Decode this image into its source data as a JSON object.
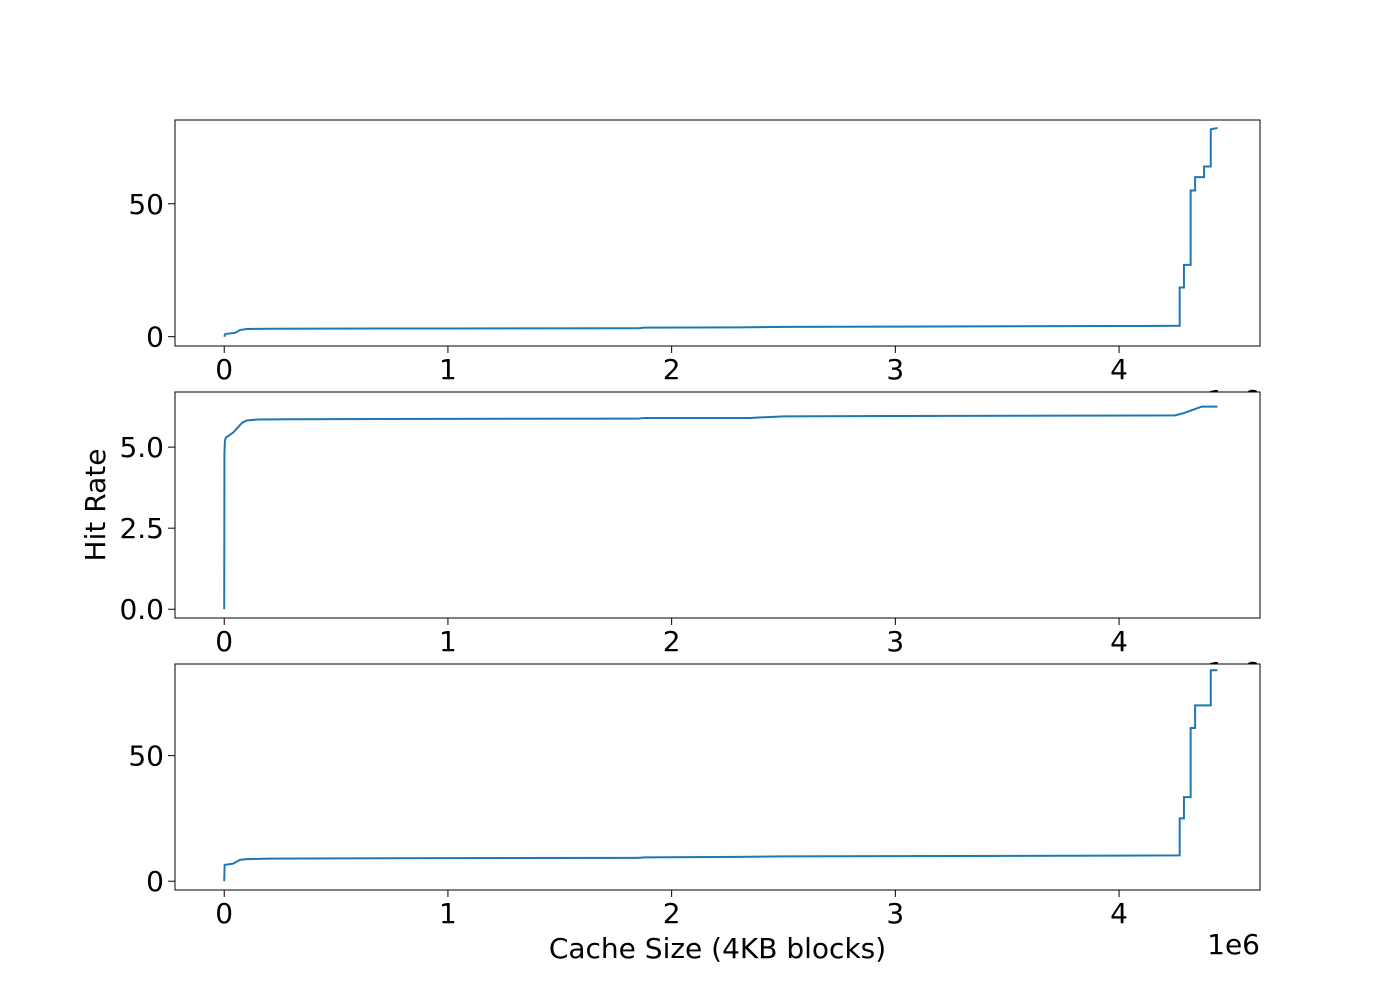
{
  "chart_data": [
    {
      "type": "line",
      "xlabel": "",
      "ylabel": "",
      "xlim": [
        -220000,
        4630000
      ],
      "ylim": [
        -3.5,
        81.5
      ],
      "x_ticks": [
        0,
        1000000,
        2000000,
        3000000,
        4000000
      ],
      "x_tick_labels": [
        "0",
        "1",
        "2",
        "3",
        "4"
      ],
      "x_offset_label": "1e6",
      "y_ticks": [
        0,
        50
      ],
      "y_tick_labels": [
        "0",
        "50"
      ],
      "grid": false,
      "series": [
        {
          "color": "#1f77b4",
          "x": [
            0,
            5000,
            50000,
            70000,
            100000,
            200000,
            1000000,
            1850000,
            1880000,
            2300000,
            2500000,
            3000000,
            4000000,
            4270000,
            4271000,
            4271000,
            4290000,
            4290000,
            4320000,
            4320000,
            4340000,
            4340000,
            4380000,
            4380000,
            4390000,
            4390000,
            4410000,
            4410000,
            4440000
          ],
          "y": [
            0,
            1.0,
            1.5,
            2.5,
            2.9,
            3.0,
            3.1,
            3.2,
            3.4,
            3.5,
            3.7,
            3.8,
            4.0,
            4.1,
            4.1,
            18.5,
            18.5,
            27,
            27,
            55,
            55,
            60,
            60,
            64,
            64,
            64,
            64,
            78,
            78.5
          ]
        }
      ]
    },
    {
      "type": "line",
      "xlabel": "",
      "ylabel": "Hit Rate",
      "xlim": [
        -220000,
        4630000
      ],
      "ylim": [
        -0.27,
        6.7
      ],
      "x_ticks": [
        0,
        1000000,
        2000000,
        3000000,
        4000000
      ],
      "x_tick_labels": [
        "0",
        "1",
        "2",
        "3",
        "4"
      ],
      "x_offset_label": "1e6",
      "y_ticks": [
        0,
        2.5,
        5.0
      ],
      "y_tick_labels": [
        "0.0",
        "2.5",
        "5.0"
      ],
      "grid": false,
      "series": [
        {
          "color": "#1f77b4",
          "x": [
            0,
            1000,
            3000,
            8000,
            20000,
            40000,
            60000,
            80000,
            100000,
            150000,
            300000,
            1000000,
            1850000,
            1880000,
            2350000,
            2500000,
            3000000,
            3800000,
            4250000,
            4290000,
            4330000,
            4370000,
            4440000
          ],
          "y": [
            0,
            4.8,
            5.2,
            5.3,
            5.35,
            5.45,
            5.6,
            5.75,
            5.82,
            5.85,
            5.86,
            5.87,
            5.88,
            5.9,
            5.9,
            5.95,
            5.96,
            5.97,
            5.98,
            6.05,
            6.15,
            6.25,
            6.25
          ]
        }
      ]
    },
    {
      "type": "line",
      "xlabel": "Cache Size (4KB blocks)",
      "ylabel": "",
      "xlim": [
        -220000,
        4630000
      ],
      "ylim": [
        -3.5,
        86.5
      ],
      "x_ticks": [
        0,
        1000000,
        2000000,
        3000000,
        4000000
      ],
      "x_tick_labels": [
        "0",
        "1",
        "2",
        "3",
        "4"
      ],
      "x_offset_label": "1e6",
      "y_ticks": [
        0,
        50
      ],
      "y_tick_labels": [
        "0",
        "50"
      ],
      "grid": false,
      "series": [
        {
          "color": "#1f77b4",
          "x": [
            0,
            2000,
            40000,
            70000,
            100000,
            200000,
            1000000,
            1850000,
            1880000,
            2300000,
            2500000,
            3000000,
            4000000,
            4270000,
            4271000,
            4271000,
            4290000,
            4290000,
            4320000,
            4320000,
            4340000,
            4340000,
            4380000,
            4380000,
            4410000,
            4410000,
            4440000
          ],
          "y": [
            0,
            6.5,
            7.0,
            8.5,
            8.8,
            9.0,
            9.2,
            9.3,
            9.5,
            9.7,
            9.9,
            10.0,
            10.2,
            10.3,
            10.3,
            25,
            25,
            33.5,
            33.5,
            61,
            61,
            70,
            70,
            70,
            70,
            84,
            84
          ]
        }
      ]
    }
  ]
}
